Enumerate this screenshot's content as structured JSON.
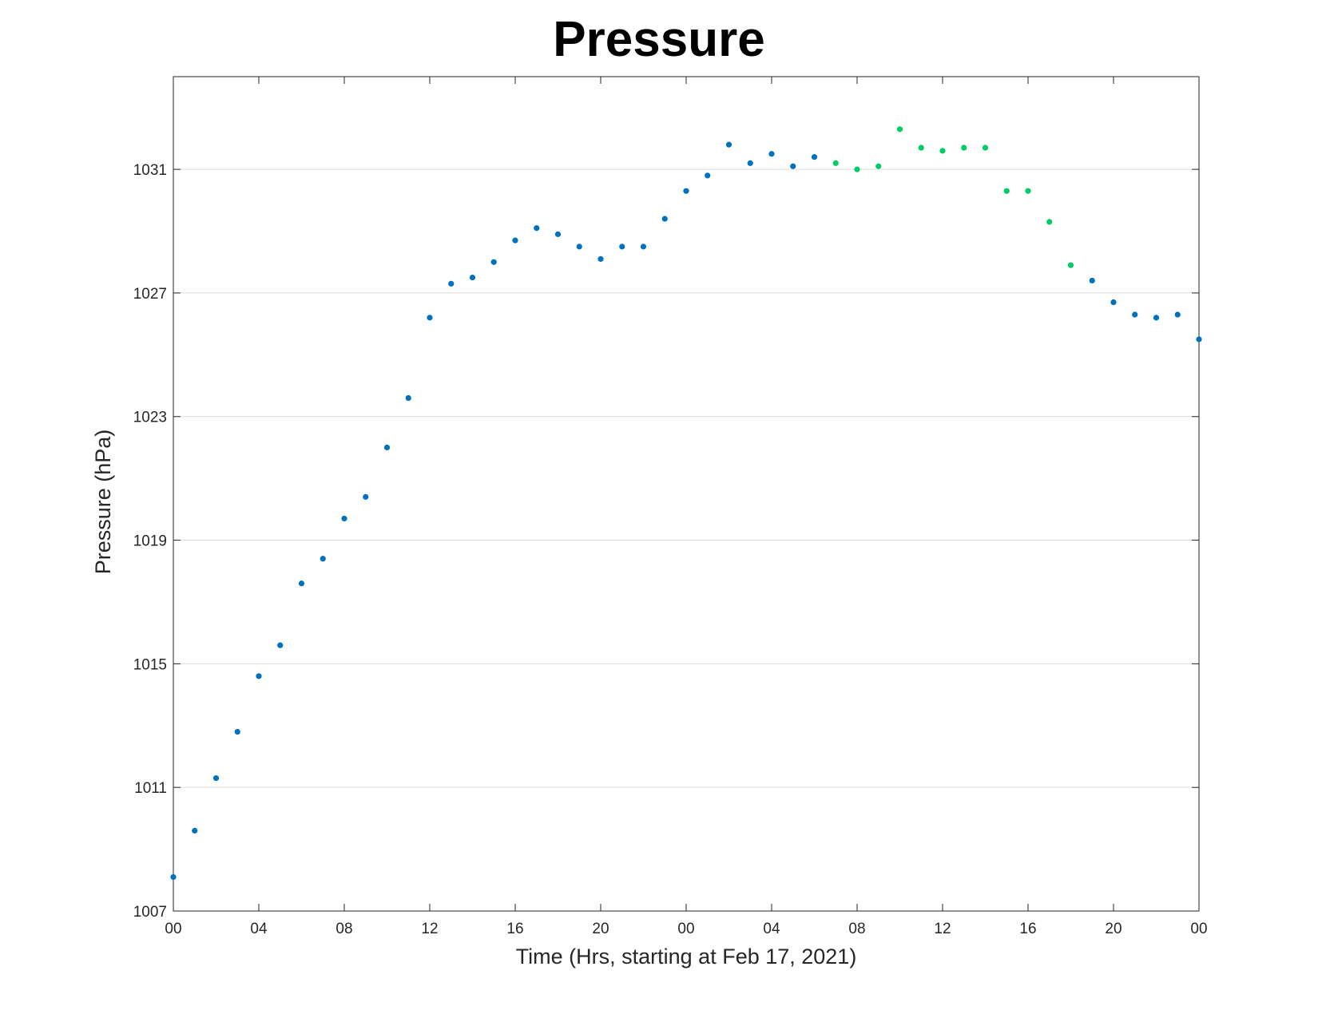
{
  "chart_data": {
    "type": "scatter",
    "title": "Pressure",
    "xlabel": "Time (Hrs, starting at Feb 17, 2021)",
    "ylabel": "Pressure (hPa)",
    "ylim": [
      1007,
      1034
    ],
    "xlim": [
      0,
      48
    ],
    "grid": "horizontal",
    "y_ticks": [
      1007,
      1011,
      1015,
      1019,
      1023,
      1027,
      1031
    ],
    "y_tick_labels": [
      "1007",
      "1011",
      "1015",
      "1019",
      "1023",
      "1027",
      "1031"
    ],
    "x_ticks": [
      0,
      4,
      8,
      12,
      16,
      20,
      24,
      28,
      32,
      36,
      40,
      44,
      48
    ],
    "x_tick_labels": [
      "00",
      "04",
      "08",
      "12",
      "16",
      "20",
      "00",
      "04",
      "08",
      "12",
      "16",
      "20",
      "00"
    ],
    "colors": {
      "blue": "#0072BD",
      "green": "#00CC66"
    },
    "points": [
      {
        "x": 0,
        "y": 1008.1,
        "color": "blue"
      },
      {
        "x": 1,
        "y": 1009.6,
        "color": "blue"
      },
      {
        "x": 2,
        "y": 1011.3,
        "color": "blue"
      },
      {
        "x": 3,
        "y": 1012.8,
        "color": "blue"
      },
      {
        "x": 4,
        "y": 1014.6,
        "color": "blue"
      },
      {
        "x": 5,
        "y": 1015.6,
        "color": "blue"
      },
      {
        "x": 6,
        "y": 1017.6,
        "color": "blue"
      },
      {
        "x": 7,
        "y": 1018.4,
        "color": "blue"
      },
      {
        "x": 8,
        "y": 1019.7,
        "color": "blue"
      },
      {
        "x": 9,
        "y": 1020.4,
        "color": "blue"
      },
      {
        "x": 10,
        "y": 1022.0,
        "color": "blue"
      },
      {
        "x": 11,
        "y": 1023.6,
        "color": "blue"
      },
      {
        "x": 12,
        "y": 1026.2,
        "color": "blue"
      },
      {
        "x": 13,
        "y": 1027.3,
        "color": "blue"
      },
      {
        "x": 14,
        "y": 1027.5,
        "color": "blue"
      },
      {
        "x": 15,
        "y": 1028.0,
        "color": "blue"
      },
      {
        "x": 16,
        "y": 1028.7,
        "color": "blue"
      },
      {
        "x": 17,
        "y": 1029.1,
        "color": "blue"
      },
      {
        "x": 18,
        "y": 1028.9,
        "color": "blue"
      },
      {
        "x": 19,
        "y": 1028.5,
        "color": "blue"
      },
      {
        "x": 20,
        "y": 1028.1,
        "color": "blue"
      },
      {
        "x": 21,
        "y": 1028.5,
        "color": "blue"
      },
      {
        "x": 22,
        "y": 1028.5,
        "color": "blue"
      },
      {
        "x": 23,
        "y": 1029.4,
        "color": "blue"
      },
      {
        "x": 24,
        "y": 1030.3,
        "color": "blue"
      },
      {
        "x": 25,
        "y": 1030.8,
        "color": "blue"
      },
      {
        "x": 26,
        "y": 1031.8,
        "color": "blue"
      },
      {
        "x": 27,
        "y": 1031.2,
        "color": "blue"
      },
      {
        "x": 28,
        "y": 1031.5,
        "color": "blue"
      },
      {
        "x": 29,
        "y": 1031.1,
        "color": "blue"
      },
      {
        "x": 30,
        "y": 1031.4,
        "color": "blue"
      },
      {
        "x": 31,
        "y": 1031.2,
        "color": "green"
      },
      {
        "x": 32,
        "y": 1031.0,
        "color": "green"
      },
      {
        "x": 33,
        "y": 1031.1,
        "color": "green"
      },
      {
        "x": 34,
        "y": 1032.3,
        "color": "green"
      },
      {
        "x": 35,
        "y": 1031.7,
        "color": "green"
      },
      {
        "x": 36,
        "y": 1031.6,
        "color": "green"
      },
      {
        "x": 37,
        "y": 1031.7,
        "color": "green"
      },
      {
        "x": 38,
        "y": 1031.7,
        "color": "green"
      },
      {
        "x": 39,
        "y": 1030.3,
        "color": "green"
      },
      {
        "x": 40,
        "y": 1030.3,
        "color": "green"
      },
      {
        "x": 41,
        "y": 1029.3,
        "color": "green"
      },
      {
        "x": 42,
        "y": 1027.9,
        "color": "green"
      },
      {
        "x": 43,
        "y": 1027.4,
        "color": "blue"
      },
      {
        "x": 44,
        "y": 1026.7,
        "color": "blue"
      },
      {
        "x": 45,
        "y": 1026.3,
        "color": "blue"
      },
      {
        "x": 46,
        "y": 1026.2,
        "color": "blue"
      },
      {
        "x": 47,
        "y": 1026.3,
        "color": "blue"
      },
      {
        "x": 48,
        "y": 1025.5,
        "color": "blue"
      }
    ]
  }
}
